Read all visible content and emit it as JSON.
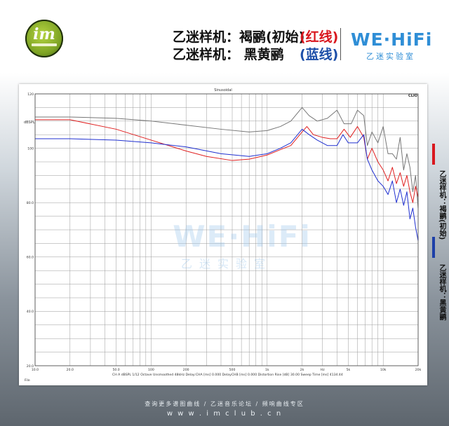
{
  "header": {
    "logo_text": "im",
    "title_line1": "乙迷样机：褐鹂(初始)",
    "tag_line1": "(红线)",
    "title_line2": "乙迷样机：   黑黄鹂",
    "tag_line2": "(蓝线)",
    "brand": "WE·HiFi",
    "brand_sub": "乙迷实验室"
  },
  "side_legend": {
    "entries": [
      {
        "label": "乙迷样机：褐鹂(初始)",
        "color": "#d9171e"
      },
      {
        "label": "乙迷样机：黑黄鹂",
        "color": "#1d3fa8"
      }
    ]
  },
  "watermark": {
    "brand": "WE·HiFi",
    "sub": "乙迷实验室"
  },
  "footer": {
    "line1": "查询更多谱图曲线 / 乙迷音乐论坛 / 频响曲线专区",
    "line2": "w w w . i m c l u b . c n"
  },
  "chart_data": {
    "type": "line",
    "title": "Sinusoidal",
    "corner_label": "CLIO",
    "ylabel": "dBSPL",
    "x_scale": "log",
    "xlim": [
      10,
      20000
    ],
    "ylim": [
      20,
      120
    ],
    "y_ticks": [
      20.0,
      40.0,
      60.0,
      80.0,
      100,
      120
    ],
    "x_ticks": [
      {
        "value": 10,
        "label": "10.0"
      },
      {
        "value": 20,
        "label": "20.0"
      },
      {
        "value": 50,
        "label": "50.0"
      },
      {
        "value": 100,
        "label": "100"
      },
      {
        "value": 200,
        "label": "200"
      },
      {
        "value": 500,
        "label": "500"
      },
      {
        "value": 1000,
        "label": "1k"
      },
      {
        "value": 2000,
        "label": "2k"
      },
      {
        "value": 3000,
        "label": "Hz"
      },
      {
        "value": 5000,
        "label": "5k"
      },
      {
        "value": 10000,
        "label": "10k"
      },
      {
        "value": 20000,
        "label": "20k"
      }
    ],
    "footer_text": "CH A  dBSPL    1/12 Octave    Unsmoothed   48kHz   Delay:CHA [ms] 0.000   DelayCHB [ms] 0.000   Distortion Rise [dB] 30.00   Sweep Time [ms] 4134.44",
    "file_label": "File",
    "grid": true,
    "series": [
      {
        "color": "#777777",
        "x": [
          10,
          20,
          50,
          100,
          200,
          400,
          700,
          1000,
          1300,
          1600,
          2000,
          2300,
          2700,
          3300,
          4000,
          4600,
          5300,
          6000,
          6800,
          7300,
          8000,
          9000,
          10000,
          11000,
          12000,
          13000,
          14000,
          15000,
          16000,
          17000,
          18000,
          19000,
          20000
        ],
        "y": [
          111.5,
          111.5,
          111,
          110,
          108.5,
          107,
          106,
          106.5,
          108,
          110,
          115,
          112,
          110,
          111,
          114,
          109,
          109,
          114,
          112,
          101,
          106,
          102,
          108,
          98,
          98,
          96,
          104,
          92,
          98,
          93,
          84,
          90,
          78
        ]
      },
      {
        "color": "#e02020",
        "x": [
          10,
          20,
          50,
          100,
          200,
          300,
          500,
          700,
          1000,
          1300,
          1600,
          2000,
          2200,
          2500,
          3000,
          3500,
          4000,
          4600,
          5200,
          6000,
          6800,
          7300,
          8000,
          9000,
          10000,
          11000,
          12000,
          13000,
          14000,
          15000,
          16000,
          17000,
          18000,
          19000,
          20000
        ],
        "y": [
          110.5,
          110.5,
          107,
          103,
          99,
          97,
          95.5,
          96,
          97.5,
          99.5,
          101,
          106,
          108,
          105,
          104,
          103.5,
          103.5,
          107,
          104,
          108,
          104,
          96,
          100,
          95,
          92,
          88,
          93,
          87,
          91,
          86,
          90,
          84,
          80,
          86,
          82
        ]
      },
      {
        "color": "#2030d0",
        "x": [
          10,
          20,
          50,
          100,
          200,
          400,
          700,
          1000,
          1300,
          1600,
          2000,
          2300,
          2700,
          3300,
          4000,
          4500,
          5000,
          6000,
          6800,
          7300,
          8000,
          9000,
          10000,
          11000,
          12000,
          13000,
          14000,
          15000,
          16000,
          17000,
          18000,
          19000,
          20000
        ],
        "y": [
          103.5,
          103.5,
          103,
          102,
          100.5,
          98,
          97,
          98,
          100,
          102,
          107,
          105,
          103,
          101,
          101,
          105,
          102,
          102,
          105,
          96,
          92,
          88,
          86,
          83,
          88,
          80,
          85,
          79,
          84,
          74,
          78,
          71,
          66
        ]
      }
    ]
  }
}
